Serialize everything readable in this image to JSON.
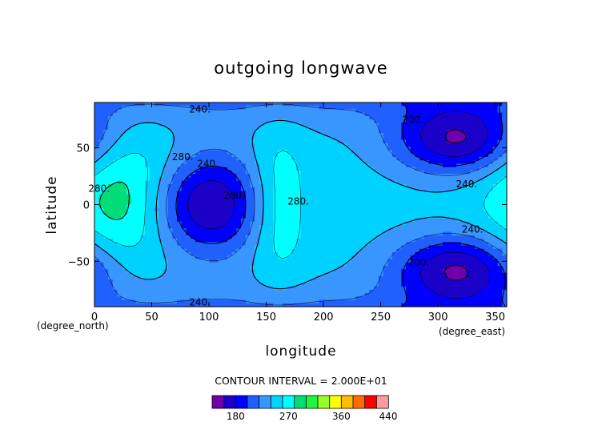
{
  "chart_data": {
    "type": "heatmap",
    "title": "outgoing longwave",
    "xlabel": "longitude",
    "ylabel": "latitude",
    "x_unit": "(degree_east)",
    "y_unit": "(degree_north)",
    "xlim": [
      0,
      360
    ],
    "ylim": [
      -90,
      90
    ],
    "x_ticks": [
      0,
      50,
      100,
      150,
      200,
      250,
      300,
      350
    ],
    "y_ticks": [
      -50,
      0,
      50
    ],
    "x_tick_labels": [
      "0",
      "50",
      "100",
      "150",
      "200",
      "250",
      "300",
      "350"
    ],
    "y_tick_labels": [
      "−50",
      "0",
      "50"
    ],
    "contour_interval_text": "CONTOUR INTERVAL = 2.000E+01",
    "contour_interval": 20,
    "contour_labels": [
      {
        "text": "240.",
        "lon": 92,
        "lat": 84
      },
      {
        "text": "240.",
        "lon": 92,
        "lat": -86
      },
      {
        "text": "280.",
        "lon": 4,
        "lat": 14
      },
      {
        "text": "280.",
        "lon": 77,
        "lat": 42
      },
      {
        "text": "240.",
        "lon": 99,
        "lat": 36
      },
      {
        "text": "200.",
        "lon": 122,
        "lat": 8
      },
      {
        "text": "280.",
        "lon": 178,
        "lat": 3
      },
      {
        "text": "200.",
        "lon": 278,
        "lat": 75
      },
      {
        "text": "240.",
        "lon": 325,
        "lat": 18
      },
      {
        "text": "240.",
        "lon": 330,
        "lat": -22
      },
      {
        "text": "200.",
        "lon": 283,
        "lat": -51
      }
    ],
    "colorbar": {
      "levels": [
        140,
        160,
        180,
        200,
        220,
        240,
        260,
        280,
        300,
        320,
        340,
        360,
        380,
        400,
        420,
        440
      ],
      "colors": [
        "#7000a8",
        "#1b00c8",
        "#0000ff",
        "#2060ff",
        "#3a96ff",
        "#00d2ff",
        "#00ffff",
        "#00dc76",
        "#20f440",
        "#96ff28",
        "#ffff00",
        "#ffbd00",
        "#ff6c00",
        "#ff0000",
        "#ff9ba0"
      ],
      "tick_labels": [
        "180",
        "270",
        "360",
        "440"
      ],
      "tick_values": [
        180,
        270,
        360,
        440
      ]
    },
    "features": [
      {
        "type": "low",
        "lon": 97,
        "lat": 0,
        "min": 160
      },
      {
        "type": "low",
        "lon": 318,
        "lat": 57,
        "min": 165
      },
      {
        "type": "low",
        "lon": 318,
        "lat": -57,
        "min": 165
      },
      {
        "type": "high",
        "lon": 30,
        "lat": 5,
        "max": 305
      },
      {
        "type": "high",
        "lon": 160,
        "lat": 0,
        "max": 290
      }
    ]
  }
}
